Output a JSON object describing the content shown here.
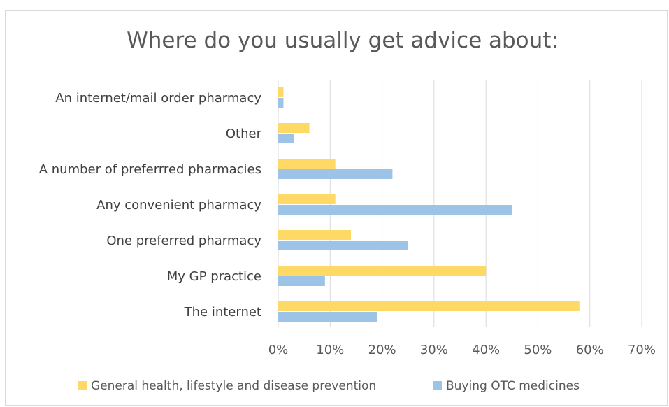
{
  "chart_data": {
    "type": "bar",
    "orientation": "horizontal",
    "title": "Where do you usually get advice about:",
    "categories": [
      "An internet/mail order pharmacy",
      "Other",
      "A number of preferrred pharmacies",
      "Any convenient pharmacy",
      "One preferred pharmacy",
      "My GP practice",
      "The internet"
    ],
    "series": [
      {
        "name": "General health, lifestyle and disease prevention",
        "color": "#ffd966",
        "values": [
          1,
          6,
          11,
          11,
          14,
          40,
          58
        ]
      },
      {
        "name": "Buying OTC medicines",
        "color": "#9dc3e6",
        "values": [
          1,
          3,
          22,
          45,
          25,
          9,
          19
        ]
      }
    ],
    "xlim": [
      0,
      70
    ],
    "xticks": [
      "0%",
      "10%",
      "20%",
      "30%",
      "40%",
      "50%",
      "60%",
      "70%"
    ],
    "grid": true,
    "gridline_color": "#d9d9d9",
    "legend_position": "bottom"
  }
}
